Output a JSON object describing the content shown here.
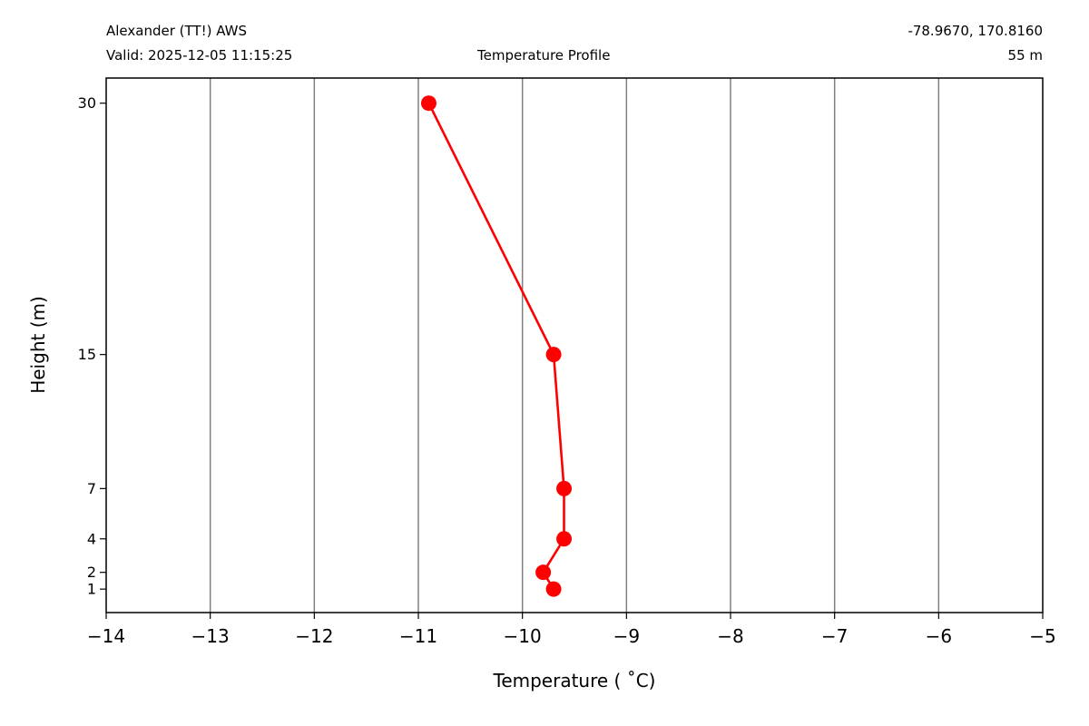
{
  "header": {
    "station": "Alexander (TT!) AWS",
    "valid": "Valid: 2025-12-05 11:15:25",
    "center_title": "Temperature Profile",
    "coords": "-78.9670, 170.8160",
    "elevation": "55 m"
  },
  "chart_data": {
    "type": "line",
    "xlabel": "Temperature ($^\\circ$C)",
    "xlabel_display": "Temperature ( ˚C)",
    "ylabel": "Height (m)",
    "xlim": [
      -14,
      -5
    ],
    "ylim": [
      -0.4,
      31.5
    ],
    "grid": "vertical",
    "x_ticks": [
      -14,
      -13,
      -12,
      -11,
      -10,
      -9,
      -8,
      -7,
      -6,
      -5
    ],
    "x_tick_labels": [
      "−14",
      "−13",
      "−12",
      "−11",
      "−10",
      "−9",
      "−8",
      "−7",
      "−6",
      "−5"
    ],
    "y_ticks": [
      1,
      2,
      4,
      7,
      15,
      30
    ],
    "y_tick_labels": [
      "1",
      "2",
      "4",
      "7",
      "15",
      "30"
    ],
    "series": [
      {
        "color": "#ff0000",
        "points": [
          {
            "temperature": -9.7,
            "height": 1
          },
          {
            "temperature": -9.8,
            "height": 2
          },
          {
            "temperature": -9.6,
            "height": 4
          },
          {
            "temperature": -9.6,
            "height": 7
          },
          {
            "temperature": -9.7,
            "height": 15
          },
          {
            "temperature": -10.9,
            "height": 30
          }
        ]
      }
    ]
  }
}
